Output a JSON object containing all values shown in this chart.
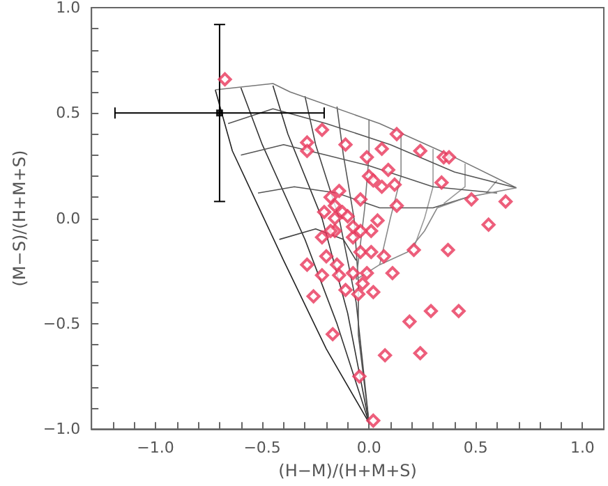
{
  "chart_data": {
    "type": "scatter",
    "xlabel": "(H−M)/(H+M+S)",
    "ylabel": "(M−S)/(H+M+S)",
    "xlim": [
      -1.3,
      1.1
    ],
    "ylim": [
      -1.0,
      1.0
    ],
    "xticks": [
      {
        "value": -1.2,
        "label": null
      },
      {
        "value": -1.1,
        "label": null
      },
      {
        "value": -1.0,
        "label": "−1.0"
      },
      {
        "value": -0.9,
        "label": null
      },
      {
        "value": -0.8,
        "label": null
      },
      {
        "value": -0.7,
        "label": null
      },
      {
        "value": -0.6,
        "label": null
      },
      {
        "value": -0.5,
        "label": "−0.5"
      },
      {
        "value": -0.4,
        "label": null
      },
      {
        "value": -0.3,
        "label": null
      },
      {
        "value": -0.2,
        "label": null
      },
      {
        "value": -0.1,
        "label": null
      },
      {
        "value": 0,
        "label": "0.0"
      },
      {
        "value": 0.1,
        "label": null
      },
      {
        "value": 0.2,
        "label": null
      },
      {
        "value": 0.3,
        "label": null
      },
      {
        "value": 0.4,
        "label": null
      },
      {
        "value": 0.5,
        "label": "0.5"
      },
      {
        "value": 0.6,
        "label": null
      },
      {
        "value": 0.7,
        "label": null
      },
      {
        "value": 0.8,
        "label": null
      },
      {
        "value": 0.9,
        "label": null
      },
      {
        "value": 1.0,
        "label": "1.0"
      }
    ],
    "yticks": [
      {
        "value": -1.0,
        "label": "−1.0"
      },
      {
        "value": -0.9,
        "label": null
      },
      {
        "value": -0.8,
        "label": null
      },
      {
        "value": -0.7,
        "label": null
      },
      {
        "value": -0.6,
        "label": null
      },
      {
        "value": -0.5,
        "label": "−0.5"
      },
      {
        "value": -0.4,
        "label": null
      },
      {
        "value": -0.3,
        "label": null
      },
      {
        "value": -0.2,
        "label": null
      },
      {
        "value": -0.1,
        "label": null
      },
      {
        "value": 0,
        "label": "0.0"
      },
      {
        "value": 0.1,
        "label": null
      },
      {
        "value": 0.2,
        "label": null
      },
      {
        "value": 0.3,
        "label": null
      },
      {
        "value": 0.4,
        "label": null
      },
      {
        "value": 0.5,
        "label": "0.5"
      },
      {
        "value": 0.6,
        "label": null
      },
      {
        "value": 0.7,
        "label": null
      },
      {
        "value": 0.8,
        "label": null
      },
      {
        "value": 0.9,
        "label": null
      },
      {
        "value": 1.0,
        "label": "1.0"
      }
    ],
    "grid": false,
    "line_style": "solid",
    "series": [
      {
        "type": "line",
        "marker": "none",
        "color": "#222222",
        "x": [
          -0.72,
          -0.64,
          -0.4,
          -0.2,
          0.0
        ],
        "values": [
          0.61,
          0.32,
          -0.2,
          -0.62,
          -0.97
        ]
      },
      {
        "type": "line",
        "marker": "none",
        "color": "#333333",
        "x": [
          -0.6,
          -0.5,
          -0.3,
          -0.15,
          0.0
        ],
        "values": [
          0.62,
          0.35,
          -0.1,
          -0.5,
          -0.97
        ]
      },
      {
        "type": "line",
        "marker": "none",
        "color": "#333333",
        "x": [
          -0.45,
          -0.38,
          -0.22,
          -0.1,
          0.0
        ],
        "values": [
          0.63,
          0.4,
          0.0,
          -0.45,
          -0.97
        ]
      },
      {
        "type": "line",
        "marker": "none",
        "color": "#444444",
        "x": [
          -0.3,
          -0.25,
          -0.14,
          -0.06,
          0.0
        ],
        "values": [
          0.58,
          0.35,
          0.0,
          -0.4,
          -0.97
        ]
      },
      {
        "type": "line",
        "marker": "none",
        "color": "#555555",
        "x": [
          -0.15,
          -0.12,
          -0.07,
          -0.05,
          -0.05,
          0.0
        ],
        "values": [
          0.53,
          0.3,
          0.0,
          -0.3,
          -0.55,
          -0.97
        ]
      },
      {
        "type": "line",
        "marker": "none",
        "color": "#777777",
        "x": [
          0.0,
          0.0,
          -0.02,
          -0.06
        ],
        "values": [
          0.47,
          0.3,
          0.05,
          -0.29
        ]
      },
      {
        "type": "line",
        "marker": "none",
        "color": "#888888",
        "x": [
          0.15,
          0.15,
          0.1,
          0.05
        ],
        "values": [
          0.41,
          0.2,
          0.0,
          -0.22
        ]
      },
      {
        "type": "line",
        "marker": "none",
        "color": "#999999",
        "x": [
          0.3,
          0.3,
          0.26,
          0.21
        ],
        "values": [
          0.33,
          0.15,
          0.0,
          -0.14
        ]
      },
      {
        "type": "line",
        "marker": "none",
        "color": "#999999",
        "x": [
          0.45,
          0.45,
          0.35
        ],
        "values": [
          0.26,
          0.15,
          0.07
        ]
      },
      {
        "type": "line",
        "marker": "none",
        "color": "#999999",
        "x": [
          0.6,
          0.55
        ],
        "values": [
          0.18,
          0.12
        ]
      },
      {
        "type": "line",
        "marker": "none",
        "color": "#777777",
        "x": [
          -0.72,
          -0.45,
          -0.37,
          0.05,
          0.4,
          0.69
        ],
        "values": [
          0.61,
          0.64,
          0.6,
          0.45,
          0.29,
          0.145
        ]
      },
      {
        "type": "line",
        "marker": "none",
        "color": "#555555",
        "x": [
          -0.66,
          -0.45,
          -0.2,
          0.1,
          0.4,
          0.69
        ],
        "values": [
          0.45,
          0.52,
          0.45,
          0.35,
          0.22,
          0.145
        ]
      },
      {
        "type": "line",
        "marker": "none",
        "color": "#555555",
        "x": [
          -0.6,
          -0.4,
          -0.2,
          0.0,
          0.3,
          0.6
        ],
        "values": [
          0.3,
          0.35,
          0.3,
          0.25,
          0.15,
          0.12
        ]
      },
      {
        "type": "line",
        "marker": "none",
        "color": "#555555",
        "x": [
          -0.52,
          -0.35,
          -0.15,
          0.05,
          0.3,
          0.46
        ],
        "values": [
          0.12,
          0.15,
          0.12,
          0.05,
          0.05,
          0.1
        ]
      },
      {
        "type": "line",
        "marker": "none",
        "color": "#888888",
        "x": [
          -0.06,
          0.05,
          0.18,
          0.26,
          0.32,
          0.46,
          0.69
        ],
        "values": [
          -0.29,
          -0.22,
          -0.16,
          -0.06,
          0.05,
          0.1,
          0.145
        ]
      },
      {
        "type": "line",
        "marker": "none",
        "color": "#444444",
        "x": [
          -0.42,
          -0.25,
          -0.12,
          -0.06
        ],
        "values": [
          -0.1,
          -0.05,
          -0.1,
          -0.2
        ]
      },
      {
        "marker": "diamond",
        "color": "#e8365a",
        "x": [
          -0.675,
          -0.22,
          -0.29,
          -0.29,
          -0.11,
          0.13,
          0.06,
          0.24,
          0.35,
          0.375,
          -0.01,
          0.0,
          0.09,
          0.02,
          0.06,
          0.12,
          0.34,
          -0.04,
          0.13,
          0.48,
          0.64,
          0.56,
          -0.14,
          -0.18,
          -0.21,
          -0.16,
          -0.125,
          -0.1,
          -0.16,
          -0.22,
          -0.075,
          0.04,
          0.01,
          -0.04,
          -0.075,
          -0.18,
          -0.16,
          -0.04,
          0.01,
          0.07,
          0.21,
          0.37,
          -0.29,
          -0.2,
          -0.15,
          -0.22,
          -0.14,
          -0.075,
          -0.01,
          0.11,
          -0.03,
          -0.11,
          -0.05,
          0.02,
          -0.26,
          0.29,
          0.42,
          0.19,
          -0.17,
          0.075,
          0.24,
          -0.045,
          0.02
        ],
        "values": [
          0.66,
          0.42,
          0.36,
          0.32,
          0.35,
          0.4,
          0.33,
          0.32,
          0.29,
          0.29,
          0.29,
          0.2,
          0.23,
          0.18,
          0.15,
          0.16,
          0.17,
          0.09,
          0.06,
          0.09,
          0.08,
          -0.03,
          0.13,
          0.1,
          0.03,
          0.06,
          0.03,
          0.01,
          -0.06,
          -0.09,
          -0.09,
          -0.01,
          -0.06,
          -0.06,
          -0.04,
          -0.06,
          -0.0,
          -0.16,
          -0.16,
          -0.18,
          -0.15,
          -0.15,
          -0.22,
          -0.18,
          -0.22,
          -0.27,
          -0.27,
          -0.26,
          -0.26,
          -0.26,
          -0.31,
          -0.34,
          -0.36,
          -0.35,
          -0.37,
          -0.44,
          -0.44,
          -0.49,
          -0.55,
          -0.65,
          -0.64,
          -0.75,
          -0.96
        ]
      },
      {
        "marker": "square",
        "color": "#000000",
        "x": [
          -0.7
        ],
        "values": [
          0.5
        ],
        "errors": [
          0.42
        ],
        "xerrors": [
          0.49
        ]
      }
    ]
  }
}
